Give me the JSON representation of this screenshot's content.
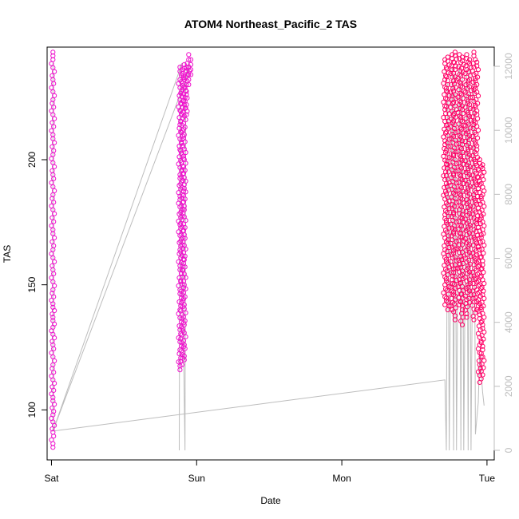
{
  "chart_data": {
    "type": "scatter",
    "title": "ATOM4 Northeast_Pacific_2 TAS",
    "xlabel": "Date",
    "ylabel": "TAS",
    "x_ticks": [
      "Sat",
      "Sun",
      "Mon",
      "Tue"
    ],
    "y_ticks": [
      100,
      150,
      200
    ],
    "y2_ticks": [
      0,
      2000,
      4000,
      6000,
      8000,
      10000,
      12000
    ],
    "xlim_days": [
      -0.03,
      3.05
    ],
    "ylim": [
      80,
      245
    ],
    "y2lim": [
      -300,
      12600
    ],
    "grid": false,
    "legend": "none",
    "colors": {
      "tas_early": "#ee11cc",
      "tas_late": "#ff0066",
      "altitude": "#bdbdbd",
      "axis": "#000000",
      "y2_axis": "#bdbdbd"
    },
    "series": [
      {
        "color": "#ee11cc",
        "segments": [
          {
            "x": 0.01,
            "y": [
              243,
              240,
              232,
              224,
              218,
              210,
              202,
              194,
              186,
              180,
              172,
              164,
              156,
              148,
              141,
              137,
              133,
              126,
              118,
              112,
              105,
              98,
              91,
              85
            ]
          },
          {
            "x": 0.885,
            "y": [
              237,
              232,
              224,
              214,
              204,
              194,
              184,
              174,
              164,
              156,
              148,
              140,
              132,
              124,
              116
            ]
          },
          {
            "x": 0.9,
            "y": [
              236,
              228,
              218,
              208,
              196,
              186,
              176,
              166,
              156,
              146,
              138,
              130,
              122,
              118
            ]
          },
          {
            "x": 0.915,
            "y": [
              238,
              232,
              222,
              210,
              200,
              190,
              180,
              170,
              160,
              150,
              142,
              134,
              126,
              120
            ]
          },
          {
            "x": 0.93,
            "y": [
              237,
              230,
              226,
              222,
              218
            ]
          },
          {
            "x": 0.945,
            "y": [
              242,
              240,
              237,
              234,
              232,
              230
            ]
          },
          {
            "x": 0.96,
            "y": [
              240,
              238,
              236,
              234
            ]
          }
        ]
      },
      {
        "color": "#ff0066",
        "segments": [
          {
            "x": 2.71,
            "y": [
              240,
              232,
              220,
              206,
              192,
              178,
              164,
              150,
              142
            ]
          },
          {
            "x": 2.73,
            "y": [
              241,
              230,
              214,
              198,
              182,
              168,
              154,
              140
            ]
          },
          {
            "x": 2.76,
            "y": [
              242,
              236,
              224,
              210,
              196,
              182,
              168,
              152,
              140
            ]
          },
          {
            "x": 2.78,
            "y": [
              243,
              236,
              226,
              214,
              200,
              186,
              172,
              158,
              144,
              136
            ]
          },
          {
            "x": 2.81,
            "y": [
              242,
              234,
              222,
              208,
              194,
              180,
              166,
              152,
              142
            ]
          },
          {
            "x": 2.83,
            "y": [
              241,
              232,
              220,
              206,
              192,
              178,
              166,
              154,
              140,
              134
            ]
          },
          {
            "x": 2.86,
            "y": [
              242,
              236,
              224,
              212,
              198,
              184,
              170,
              156,
              144,
              137
            ]
          },
          {
            "x": 2.88,
            "y": [
              240,
              232,
              222,
              208,
              194,
              180,
              166,
              152,
              143
            ]
          },
          {
            "x": 2.91,
            "y": [
              243,
              237,
              228,
              214,
              200,
              186,
              172,
              158,
              146,
              136
            ]
          },
          {
            "x": 2.93,
            "y": [
              239,
              230,
              218,
              204,
              190,
              176,
              162,
              148,
              140
            ]
          },
          {
            "x": 2.95,
            "y": [
              200,
              190,
              176,
              164,
              150,
              138,
              126,
              118,
              111
            ]
          },
          {
            "x": 2.97,
            "y": [
              198,
              186,
              172,
              158,
              146,
              134,
              124,
              114
            ]
          }
        ]
      },
      {
        "name": "",
        "color": "#bdbdbd",
        "axis": "right",
        "line": {
          "x": [
            0.01,
            0.01,
            0.01,
            0.9,
            0.885,
            0.88,
            0.885,
            0.92,
            0.925,
            0.93,
            0.945,
            0.96,
            0.01,
            2.71,
            2.72,
            2.73,
            2.74,
            2.76,
            2.77,
            2.78,
            2.79,
            2.81,
            2.82,
            2.83,
            2.84,
            2.86,
            2.87,
            2.88,
            2.89,
            2.91,
            2.92,
            2.94,
            2.95,
            2.97,
            2.98
          ],
          "y": [
            12100,
            10000,
            600,
            12100,
            12000,
            0,
            11000,
            0,
            11500,
            11800,
            12100,
            12000,
            600,
            2200,
            0,
            11500,
            0,
            12000,
            0,
            11800,
            0,
            12000,
            0,
            11900,
            0,
            11900,
            0,
            12000,
            0,
            11700,
            500,
            1500,
            3000,
            1800,
            1400
          ]
        }
      }
    ]
  }
}
